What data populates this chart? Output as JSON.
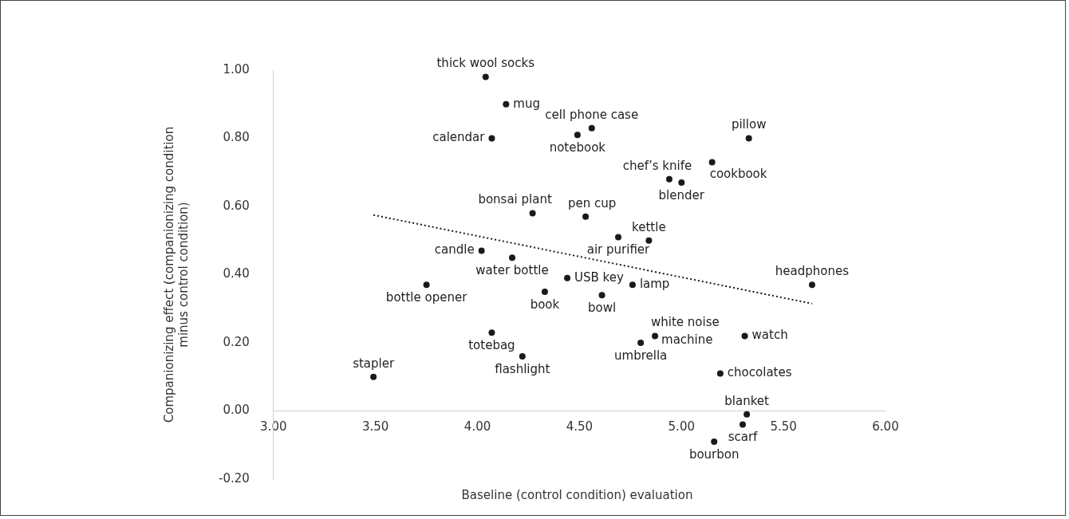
{
  "chart_data": {
    "type": "scatter",
    "xlabel": "Baseline (control condition) evaluation",
    "ylabel": "Companionizing effect (companionizing condition minus control condition)",
    "xlim": [
      3,
      6
    ],
    "xticks": [
      {
        "value": 3,
        "label": "3.00"
      },
      {
        "value": 3.5,
        "label": "3.50"
      },
      {
        "value": 4,
        "label": "4.00"
      },
      {
        "value": 4.5,
        "label": "4.50"
      },
      {
        "value": 5,
        "label": "5.00"
      },
      {
        "value": 5.5,
        "label": "5.50"
      },
      {
        "value": 6,
        "label": "6.00"
      }
    ],
    "ylim": [
      -0.2,
      1
    ],
    "yticks": [
      {
        "value": -0.2,
        "label": "-0.20"
      },
      {
        "value": 0,
        "label": "0.00"
      },
      {
        "value": 0.2,
        "label": "0.20"
      },
      {
        "value": 0.4,
        "label": "0.40"
      },
      {
        "value": 0.6,
        "label": "0.60"
      },
      {
        "value": 0.8,
        "label": "0.80"
      },
      {
        "value": 1,
        "label": "1.00"
      }
    ],
    "grid": false,
    "legend": false,
    "marker": "circle",
    "series": [
      {
        "color": "#1a1a1a",
        "x": [
          4.04,
          4.14,
          4.07,
          4.49,
          4.56,
          5.33,
          5.15,
          4.94,
          5.0,
          4.27,
          4.53,
          4.69,
          4.84,
          4.02,
          4.17,
          4.44,
          3.75,
          4.33,
          4.76,
          4.61,
          5.64,
          4.87,
          4.8,
          5.31,
          5.19,
          3.49,
          4.07,
          4.22,
          5.32,
          5.3,
          5.16
        ],
        "values": [
          0.98,
          0.9,
          0.8,
          0.81,
          0.83,
          0.8,
          0.73,
          0.68,
          0.67,
          0.58,
          0.57,
          0.51,
          0.5,
          0.47,
          0.45,
          0.39,
          0.37,
          0.35,
          0.37,
          0.34,
          0.37,
          0.22,
          0.2,
          0.22,
          0.11,
          0.1,
          0.23,
          0.16,
          -0.01,
          -0.04,
          -0.09
        ]
      },
      {
        "type": "line",
        "color": "#1a1a1a",
        "marker": "none",
        "line_style": "dotted",
        "x": [
          3.49,
          5.64
        ],
        "values": [
          0.575,
          0.315
        ]
      }
    ],
    "annotations": [
      {
        "text": "thick wool socks",
        "x": 4.04,
        "y": 0.98
      },
      {
        "text": "mug",
        "x": 4.14,
        "y": 0.9
      },
      {
        "text": "calendar",
        "x": 4.07,
        "y": 0.8
      },
      {
        "text": "notebook",
        "x": 4.49,
        "y": 0.81
      },
      {
        "text": "cell phone case",
        "x": 4.56,
        "y": 0.83
      },
      {
        "text": "pillow",
        "x": 5.33,
        "y": 0.8
      },
      {
        "text": "cookbook",
        "x": 5.15,
        "y": 0.73
      },
      {
        "text": "chef’s knife",
        "x": 4.94,
        "y": 0.68
      },
      {
        "text": "blender",
        "x": 5.0,
        "y": 0.67
      },
      {
        "text": "bonsai plant",
        "x": 4.27,
        "y": 0.58
      },
      {
        "text": "pen cup",
        "x": 4.53,
        "y": 0.57
      },
      {
        "text": "air purifier",
        "x": 4.69,
        "y": 0.51
      },
      {
        "text": "kettle",
        "x": 4.84,
        "y": 0.5
      },
      {
        "text": "candle",
        "x": 4.02,
        "y": 0.47
      },
      {
        "text": "water bottle",
        "x": 4.17,
        "y": 0.45
      },
      {
        "text": "USB key",
        "x": 4.44,
        "y": 0.39
      },
      {
        "text": "bottle opener",
        "x": 3.75,
        "y": 0.37
      },
      {
        "text": "book",
        "x": 4.33,
        "y": 0.35
      },
      {
        "text": "lamp",
        "x": 4.76,
        "y": 0.37
      },
      {
        "text": "bowl",
        "x": 4.61,
        "y": 0.34
      },
      {
        "text": "headphones",
        "x": 5.64,
        "y": 0.37
      },
      {
        "text": "white noise machine",
        "x": 4.87,
        "y": 0.22
      },
      {
        "text": "umbrella",
        "x": 4.8,
        "y": 0.2
      },
      {
        "text": "watch",
        "x": 5.31,
        "y": 0.22
      },
      {
        "text": "chocolates",
        "x": 5.19,
        "y": 0.11
      },
      {
        "text": "stapler",
        "x": 3.49,
        "y": 0.1
      },
      {
        "text": "totebag",
        "x": 4.07,
        "y": 0.23
      },
      {
        "text": "flashlight",
        "x": 4.22,
        "y": 0.16
      },
      {
        "text": "blanket",
        "x": 5.32,
        "y": -0.01
      },
      {
        "text": "scarf",
        "x": 5.3,
        "y": -0.04
      },
      {
        "text": "bourbon",
        "x": 5.16,
        "y": -0.09
      }
    ]
  }
}
